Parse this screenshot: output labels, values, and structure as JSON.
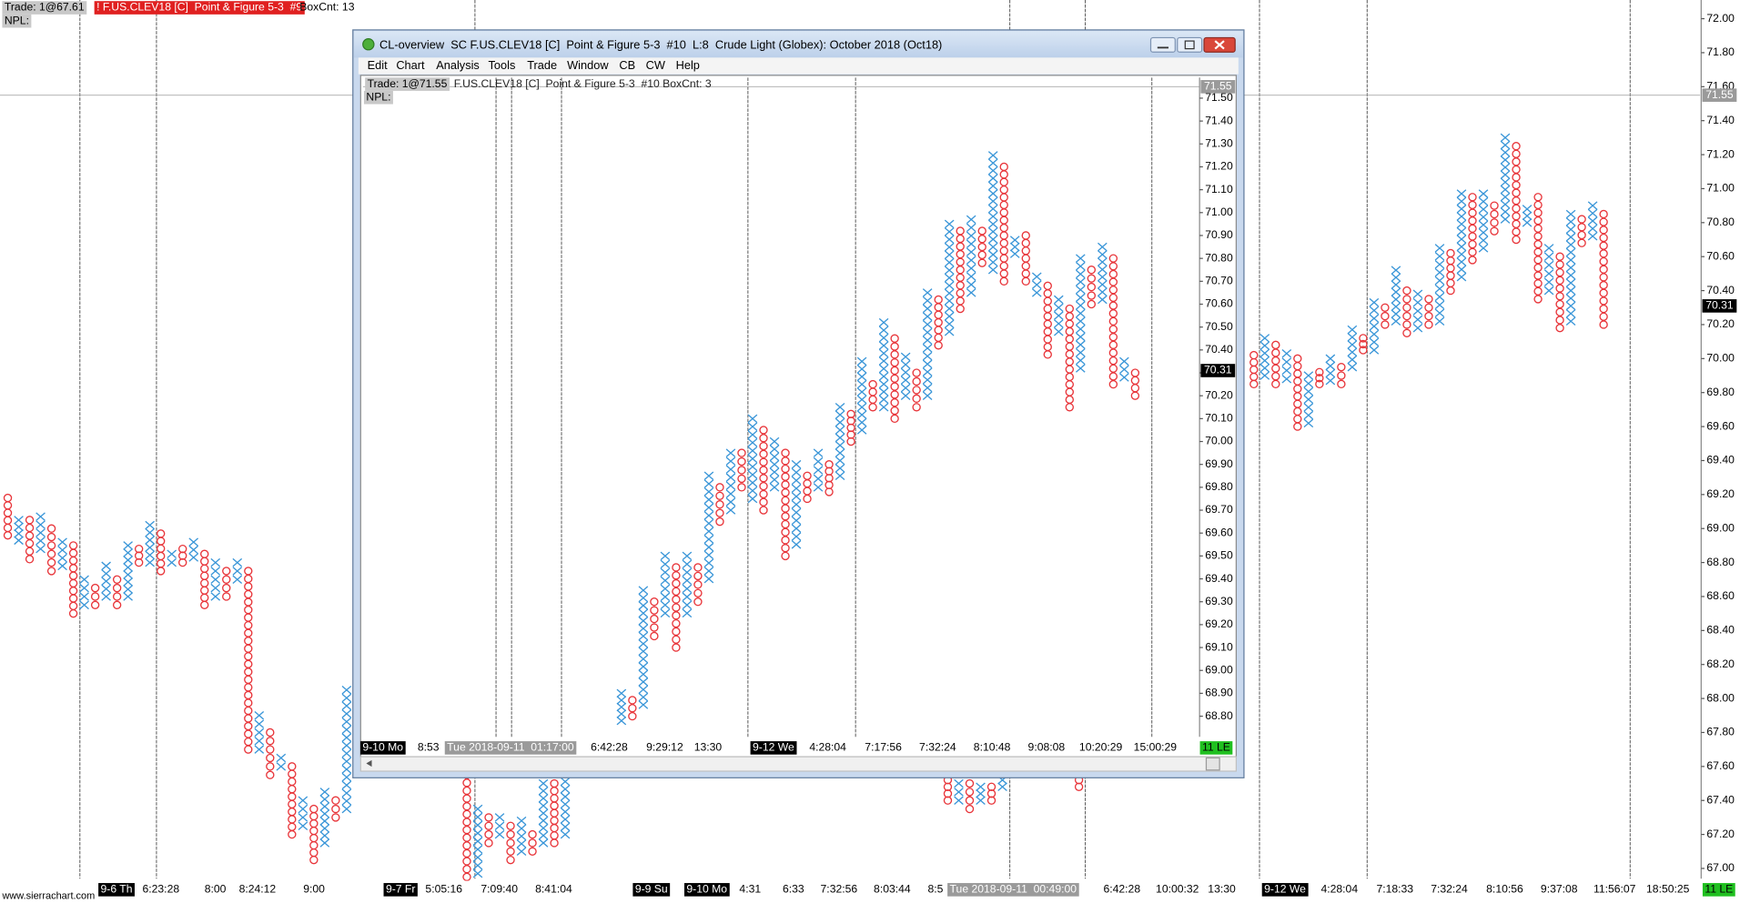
{
  "window": {
    "title": "CL-overview  SC F.US.CLEV18 [C]  Point & Figure 5-3  #10  L:8  Crude Light (Globex): October 2018 (Oct18)",
    "menu": [
      "Edit",
      "Chart",
      "Analysis",
      "Tools",
      "Trade",
      "Window",
      "CB",
      "CW",
      "Help"
    ]
  },
  "footer": "www.sierrachart.com",
  "chart_data": [
    {
      "type": "point_and_figure",
      "x_color": "#3a96d8",
      "o_color": "#e8353a",
      "header": {
        "trade": "Trade: 1@67.61",
        "symbol": "! F.US.CLEV18 [C]  Point & Figure 5-3  #9",
        "box_count": "BoxCnt: 13",
        "npl": "NPL:"
      },
      "ylim": [
        66.94,
        72.11
      ],
      "yticks": [
        {
          "value": 67.0,
          "label": "67.00"
        },
        {
          "value": 67.2,
          "label": "67.20"
        },
        {
          "value": 67.4,
          "label": "67.40"
        },
        {
          "value": 67.6,
          "label": "67.60"
        },
        {
          "value": 67.8,
          "label": "67.80"
        },
        {
          "value": 68.0,
          "label": "68.00"
        },
        {
          "value": 68.2,
          "label": "68.20"
        },
        {
          "value": 68.4,
          "label": "68.40"
        },
        {
          "value": 68.6,
          "label": "68.60"
        },
        {
          "value": 68.8,
          "label": "68.80"
        },
        {
          "value": 69.0,
          "label": "69.00"
        },
        {
          "value": 69.2,
          "label": "69.20"
        },
        {
          "value": 69.4,
          "label": "69.40"
        },
        {
          "value": 69.6,
          "label": "69.60"
        },
        {
          "value": 69.8,
          "label": "69.80"
        },
        {
          "value": 70.0,
          "label": "70.00"
        },
        {
          "value": 70.2,
          "label": "70.20"
        },
        {
          "value": 70.4,
          "label": "70.40"
        },
        {
          "value": 70.6,
          "label": "70.60"
        },
        {
          "value": 70.8,
          "label": "70.80"
        },
        {
          "value": 71.0,
          "label": "71.00"
        },
        {
          "value": 71.2,
          "label": "71.20"
        },
        {
          "value": 71.4,
          "label": "71.40"
        },
        {
          "value": 71.6,
          "label": "71.60"
        },
        {
          "value": 71.8,
          "label": "71.80"
        },
        {
          "value": 72.0,
          "label": "72.00"
        }
      ],
      "price_tags": [
        71.55,
        70.31
      ],
      "x_labels": [
        "9-6 Th",
        "6:23:28",
        "8:00",
        "8:24:12",
        "9:00",
        "9-7 Fr",
        "5:05:16",
        "7:09:40",
        "8:41:04",
        "9-9 Su",
        "9-10 Mo",
        "4:31",
        "6:33",
        "7:32:56",
        "8:03:44",
        "8:5",
        "Tue 2018-09-11  00:49:00",
        "6:42:28",
        "10:00:32",
        "13:30",
        "9-12 We",
        "4:28:04",
        "7:18:33",
        "7:32:24",
        "8:10:56",
        "9:37:08",
        "11:56:07",
        "18:50:25",
        "11 LE"
      ],
      "columns": [
        [
          "O",
          68.96,
          69.18
        ],
        [
          "X",
          68.93,
          69.05
        ],
        [
          "O",
          68.82,
          69.05
        ],
        [
          "X",
          68.88,
          69.07
        ],
        [
          "O",
          68.75,
          69.0
        ],
        [
          "X",
          68.78,
          68.92
        ],
        [
          "O",
          68.5,
          68.9
        ],
        [
          "X",
          68.55,
          68.7
        ],
        [
          "O",
          68.55,
          68.65
        ],
        [
          "X",
          68.6,
          68.78
        ],
        [
          "O",
          68.55,
          68.7
        ],
        [
          "X",
          68.6,
          68.9
        ],
        [
          "O",
          68.8,
          68.88
        ],
        [
          "X",
          68.8,
          69.02
        ],
        [
          "O",
          68.75,
          68.97
        ],
        [
          "X",
          68.8,
          68.85
        ],
        [
          "O",
          68.8,
          68.88
        ],
        [
          "X",
          68.83,
          68.92
        ],
        [
          "O",
          68.55,
          68.85
        ],
        [
          "X",
          68.6,
          68.8
        ],
        [
          "O",
          68.6,
          68.75
        ],
        [
          "X",
          68.7,
          68.8
        ],
        [
          "O",
          67.7,
          68.75
        ],
        [
          "X",
          67.7,
          67.9
        ],
        [
          "O",
          67.55,
          67.8
        ],
        [
          "X",
          67.6,
          67.65
        ],
        [
          "O",
          67.2,
          67.6
        ],
        [
          "X",
          67.25,
          67.4
        ],
        [
          "O",
          67.05,
          67.35
        ],
        [
          "X",
          67.15,
          67.45
        ],
        [
          "O",
          67.3,
          67.4
        ],
        [
          "X",
          67.35,
          68.05
        ],
        null,
        null,
        null,
        null,
        null,
        null,
        null,
        null,
        null,
        null,
        [
          "O",
          66.95,
          67.55
        ],
        [
          "X",
          66.97,
          67.35
        ],
        [
          "O",
          67.15,
          67.3
        ],
        [
          "X",
          67.2,
          67.3
        ],
        [
          "O",
          67.05,
          67.25
        ],
        [
          "X",
          67.1,
          67.28
        ],
        [
          "O",
          67.1,
          67.2
        ],
        [
          "X",
          67.15,
          67.5
        ],
        [
          "O",
          67.15,
          67.5
        ],
        [
          "X",
          67.2,
          67.6
        ],
        null,
        null,
        null,
        null,
        null,
        null,
        null,
        null,
        null,
        null,
        null,
        null,
        null,
        null,
        null,
        null,
        null,
        null,
        null,
        null,
        null,
        null,
        null,
        null,
        null,
        null,
        null,
        null,
        null,
        null,
        null,
        null,
        null,
        null,
        [
          "O",
          67.4,
          67.52
        ],
        [
          "X",
          67.4,
          67.5
        ],
        [
          "O",
          67.35,
          67.5
        ],
        [
          "X",
          67.4,
          67.48
        ],
        [
          "O",
          67.4,
          67.48
        ],
        [
          "X",
          67.48,
          67.52
        ],
        null,
        null,
        null,
        null,
        null,
        null,
        [
          "O",
          67.48,
          67.52
        ],
        null,
        null,
        null,
        null,
        null,
        null,
        null,
        null,
        null,
        null,
        null,
        null,
        null,
        null,
        null,
        [
          "O",
          69.85,
          70.02
        ],
        [
          "X",
          69.9,
          70.12
        ],
        [
          "O",
          69.85,
          70.08
        ],
        [
          "X",
          69.88,
          70.03
        ],
        [
          "O",
          69.6,
          70.0
        ],
        [
          "X",
          69.62,
          69.9
        ],
        [
          "O",
          69.85,
          69.92
        ],
        [
          "X",
          69.87,
          70.0
        ],
        [
          "O",
          69.85,
          69.95
        ],
        [
          "X",
          69.95,
          70.17
        ],
        [
          "O",
          70.05,
          70.12
        ],
        [
          "X",
          70.05,
          70.33
        ],
        [
          "O",
          70.2,
          70.3
        ],
        [
          "X",
          70.22,
          70.52
        ],
        [
          "O",
          70.15,
          70.4
        ],
        [
          "X",
          70.18,
          70.38
        ],
        [
          "O",
          70.2,
          70.35
        ],
        [
          "X",
          70.22,
          70.65
        ],
        [
          "O",
          70.4,
          70.62
        ],
        [
          "X",
          70.48,
          70.97
        ],
        [
          "O",
          70.58,
          70.95
        ],
        [
          "X",
          70.65,
          70.97
        ],
        [
          "O",
          70.75,
          70.9
        ],
        [
          "X",
          70.82,
          71.3
        ],
        [
          "O",
          70.7,
          71.25
        ],
        [
          "X",
          70.8,
          70.88
        ],
        [
          "O",
          70.35,
          70.95
        ],
        [
          "X",
          70.4,
          70.65
        ],
        [
          "O",
          70.18,
          70.6
        ],
        [
          "X",
          70.22,
          70.85
        ],
        [
          "O",
          70.68,
          70.82
        ],
        [
          "X",
          70.72,
          70.9
        ],
        [
          "O",
          70.2,
          70.85
        ]
      ]
    },
    {
      "type": "point_and_figure",
      "x_color": "#3a96d8",
      "o_color": "#e8353a",
      "header": {
        "trade": "Trade: 1@71.55",
        "symbol": "F.US.CLEV18 [C]  Point & Figure 5-3  #10 BoxCnt: 3",
        "npl": "NPL:"
      },
      "ylim": [
        68.71,
        71.59
      ],
      "yticks": [
        {
          "value": 68.8,
          "label": "68.80"
        },
        {
          "value": 68.9,
          "label": "68.90"
        },
        {
          "value": 69.0,
          "label": "69.00"
        },
        {
          "value": 69.1,
          "label": "69.10"
        },
        {
          "value": 69.2,
          "label": "69.20"
        },
        {
          "value": 69.3,
          "label": "69.30"
        },
        {
          "value": 69.4,
          "label": "69.40"
        },
        {
          "value": 69.5,
          "label": "69.50"
        },
        {
          "value": 69.6,
          "label": "69.60"
        },
        {
          "value": 69.7,
          "label": "69.70"
        },
        {
          "value": 69.8,
          "label": "69.80"
        },
        {
          "value": 69.9,
          "label": "69.90"
        },
        {
          "value": 70.0,
          "label": "70.00"
        },
        {
          "value": 70.1,
          "label": "70.10"
        },
        {
          "value": 70.2,
          "label": "70.20"
        },
        {
          "value": 70.3,
          "label": "70.30"
        },
        {
          "value": 70.4,
          "label": "70.40"
        },
        {
          "value": 70.5,
          "label": "70.50"
        },
        {
          "value": 70.6,
          "label": "70.60"
        },
        {
          "value": 70.7,
          "label": "70.70"
        },
        {
          "value": 70.8,
          "label": "70.80"
        },
        {
          "value": 70.9,
          "label": "70.90"
        },
        {
          "value": 71.0,
          "label": "71.00"
        },
        {
          "value": 71.1,
          "label": "71.10"
        },
        {
          "value": 71.2,
          "label": "71.20"
        },
        {
          "value": 71.3,
          "label": "71.30"
        },
        {
          "value": 71.4,
          "label": "71.40"
        },
        {
          "value": 71.5,
          "label": "71.50"
        }
      ],
      "price_tags": [
        71.55,
        70.31
      ],
      "x_labels": [
        "9-10 Mo",
        "8:53",
        "Tue 2018-09-11  01:17:00",
        "6:42:28",
        "9:29:12",
        "13:30",
        "9-12 We",
        "4:28:04",
        "7:17:56",
        "7:32:24",
        "8:10:48",
        "9:08:08",
        "10:20:29",
        "15:00:29",
        "11 LE"
      ],
      "columns": [
        [
          "X",
          68.78,
          68.9
        ],
        [
          "O",
          68.8,
          68.87
        ],
        [
          "X",
          68.85,
          69.35
        ],
        [
          "O",
          69.15,
          69.3
        ],
        [
          "X",
          69.25,
          69.5
        ],
        [
          "O",
          69.1,
          69.45
        ],
        [
          "X",
          69.25,
          69.5
        ],
        [
          "O",
          69.3,
          69.45
        ],
        [
          "X",
          69.4,
          69.85
        ],
        [
          "O",
          69.65,
          69.8
        ],
        [
          "X",
          69.7,
          69.95
        ],
        [
          "O",
          69.8,
          69.95
        ],
        [
          "X",
          69.75,
          70.1
        ],
        [
          "O",
          69.7,
          70.05
        ],
        [
          "X",
          69.8,
          70.0
        ],
        [
          "O",
          69.5,
          69.95
        ],
        [
          "X",
          69.55,
          69.9
        ],
        [
          "O",
          69.75,
          69.85
        ],
        [
          "X",
          69.8,
          69.95
        ],
        [
          "O",
          69.78,
          69.9
        ],
        [
          "X",
          69.85,
          70.15
        ],
        [
          "O",
          70.0,
          70.12
        ],
        [
          "X",
          70.05,
          70.35
        ],
        [
          "O",
          70.15,
          70.25
        ],
        [
          "X",
          70.15,
          70.52
        ],
        [
          "O",
          70.1,
          70.45
        ],
        [
          "X",
          70.2,
          70.37
        ],
        [
          "O",
          70.15,
          70.3
        ],
        [
          "X",
          70.2,
          70.65
        ],
        [
          "O",
          70.42,
          70.62
        ],
        [
          "X",
          70.48,
          70.95
        ],
        [
          "O",
          70.58,
          70.92
        ],
        [
          "X",
          70.65,
          70.97
        ],
        [
          "O",
          70.78,
          70.92
        ],
        [
          "X",
          70.75,
          71.25
        ],
        [
          "O",
          70.7,
          71.2
        ],
        [
          "X",
          70.82,
          70.88
        ],
        [
          "O",
          70.7,
          70.9
        ],
        [
          "X",
          70.65,
          70.72
        ],
        [
          "O",
          70.38,
          70.68
        ],
        [
          "X",
          70.48,
          70.62
        ],
        [
          "O",
          70.15,
          70.58
        ],
        [
          "X",
          70.32,
          70.8
        ],
        [
          "O",
          70.6,
          70.75
        ],
        [
          "X",
          70.62,
          70.85
        ],
        [
          "O",
          70.25,
          70.8
        ],
        [
          "X",
          70.28,
          70.35
        ],
        [
          "O",
          70.2,
          70.3
        ]
      ]
    }
  ]
}
